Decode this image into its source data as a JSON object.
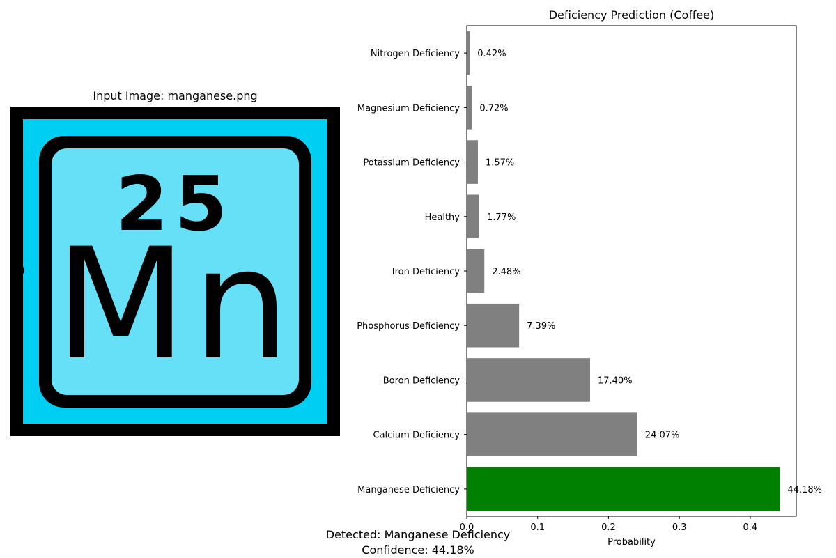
{
  "image_panel": {
    "title": "Input Image: manganese.png",
    "element_number": "25",
    "element_symbol": "Mn",
    "colors": {
      "frame": "#000000",
      "outer": "#00cef3",
      "inner": "#66e0f7"
    }
  },
  "detection": {
    "line1": "Detected: Manganese Deficiency",
    "line2": "Confidence: 44.18%"
  },
  "chart_data": {
    "type": "bar",
    "orientation": "horizontal",
    "title": "Deficiency Prediction (Coffee)",
    "xlabel": "Probability",
    "ylabel": "",
    "xlim": [
      0,
      0.465
    ],
    "xticks": [
      0.0,
      0.1,
      0.2,
      0.3,
      0.4
    ],
    "xtick_labels": [
      "0.0",
      "0.1",
      "0.2",
      "0.3",
      "0.4"
    ],
    "grid": false,
    "categories": [
      "Manganese Deficiency",
      "Calcium Deficiency",
      "Boron Deficiency",
      "Phosphorus Deficiency",
      "Iron Deficiency",
      "Healthy",
      "Potassium Deficiency",
      "Magnesium Deficiency",
      "Nitrogen Deficiency"
    ],
    "values": [
      0.4418,
      0.2407,
      0.174,
      0.0739,
      0.0248,
      0.0177,
      0.0157,
      0.0072,
      0.0042
    ],
    "value_labels": [
      "44.18%",
      "24.07%",
      "17.40%",
      "7.39%",
      "2.48%",
      "1.77%",
      "1.57%",
      "0.72%",
      "0.42%"
    ],
    "bar_colors": [
      "#008000",
      "#808080",
      "#808080",
      "#808080",
      "#808080",
      "#808080",
      "#808080",
      "#808080",
      "#808080"
    ]
  }
}
